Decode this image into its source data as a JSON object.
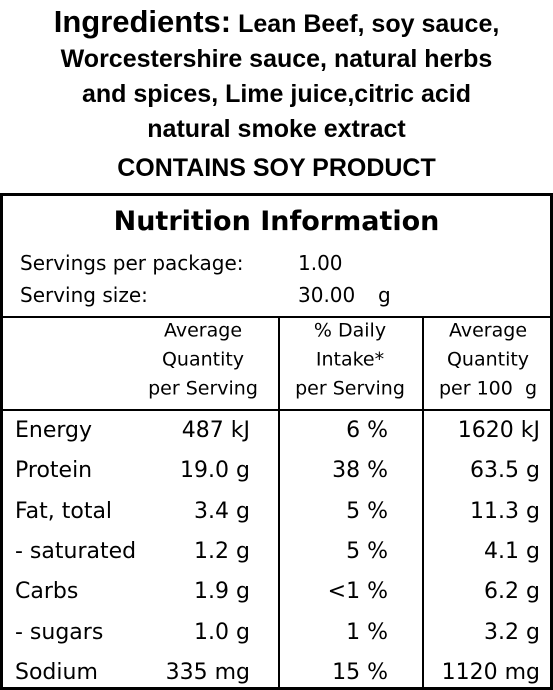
{
  "ingredients": {
    "label": "Ingredients:",
    "lines": [
      "Lean Beef, soy sauce,",
      "Worcestershire sauce, natural herbs",
      "and spices, Lime juice,citric acid",
      "natural smoke extract"
    ]
  },
  "allergen": "CONTAINS SOY PRODUCT",
  "nutrition": {
    "title": "Nutrition Information",
    "servings": [
      [
        "Servings per package:",
        "1.00",
        ""
      ],
      [
        "Serving size:",
        "30.00",
        "g"
      ]
    ],
    "headers": [
      [
        "Average",
        "Quantity",
        "per Serving"
      ],
      [
        "% Daily",
        "Intake*",
        "per Serving"
      ],
      [
        "Average",
        "Quantity",
        "per 100  g"
      ]
    ],
    "rows": [
      [
        "Energy",
        "487 kJ",
        "6 %",
        "1620 kJ"
      ],
      [
        "Protein",
        "19.0 g",
        "38 %",
        "63.5 g"
      ],
      [
        "Fat, total",
        "3.4 g",
        "5 %",
        "11.3 g"
      ],
      [
        "- saturated",
        "1.2 g",
        "5 %",
        "4.1 g"
      ],
      [
        "Carbs",
        "1.9 g",
        "<1 %",
        "6.2 g"
      ],
      [
        "- sugars",
        "1.0 g",
        "1 %",
        "3.2 g"
      ],
      [
        "Sodium",
        "335 mg",
        "15 %",
        "1120 mg"
      ]
    ]
  }
}
